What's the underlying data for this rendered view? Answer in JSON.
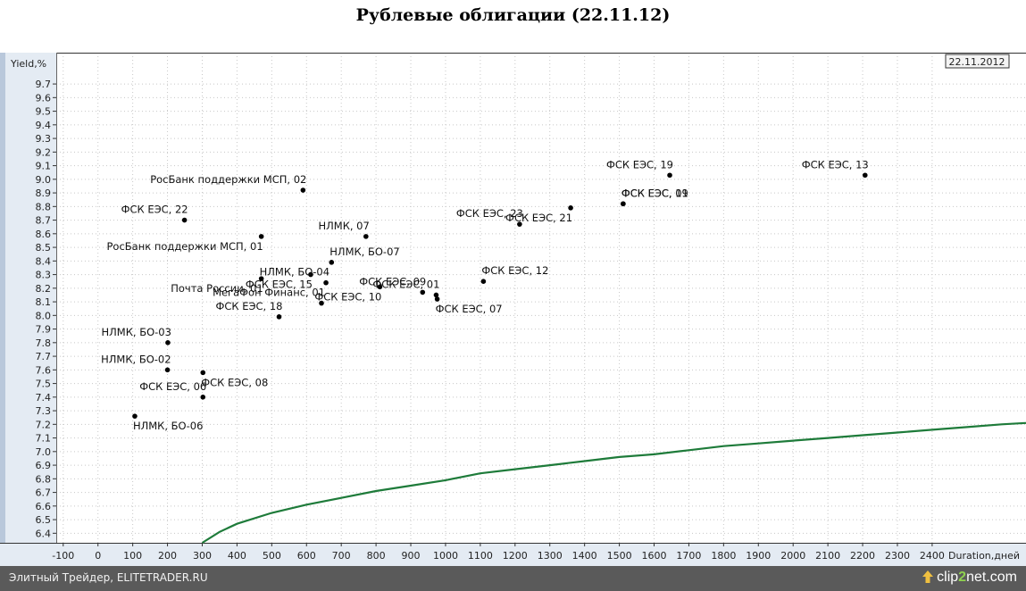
{
  "header": {
    "title": "Рублевые облигации (22.11.12)"
  },
  "chart_data": {
    "type": "scatter",
    "title": "Рублевые облигации (22.11.12)",
    "xlabel": "Duration,дней",
    "ylabel": "Yield,%",
    "date_label": "22.11.2012",
    "xlim": [
      -120,
      2670
    ],
    "ylim": [
      6.33,
      9.93
    ],
    "x_ticks": [
      -100,
      0,
      100,
      200,
      300,
      400,
      500,
      600,
      700,
      800,
      900,
      1000,
      1100,
      1200,
      1300,
      1400,
      1500,
      1600,
      1700,
      1800,
      1900,
      2000,
      2100,
      2200,
      2300,
      2400
    ],
    "y_ticks": [
      6.4,
      6.5,
      6.6,
      6.7,
      6.8,
      6.9,
      7.0,
      7.1,
      7.2,
      7.3,
      7.4,
      7.5,
      7.6,
      7.7,
      7.8,
      7.9,
      8.0,
      8.1,
      8.2,
      8.3,
      8.4,
      8.5,
      8.6,
      8.7,
      8.8,
      8.9,
      9.0,
      9.1,
      9.2,
      9.3,
      9.4,
      9.5,
      9.6,
      9.7
    ],
    "y_tick_labels": [
      "6.4",
      "6.5",
      "6.6",
      "6.7",
      "6.8",
      "6.9",
      "7.0",
      "7.1",
      "7.2",
      "7.3",
      "7.4",
      "7.5",
      "7.6",
      "7.7",
      "7.8",
      "7.9",
      "8.0",
      "8.1",
      "8.2",
      "8.3",
      "8.4",
      "8.5",
      "8.6",
      "8.7",
      "8.8",
      "8.9",
      "9.0",
      "9.1",
      "9.2",
      "9.3",
      "9.4",
      "9.5",
      "9.6",
      "9.7"
    ],
    "grid": true,
    "curve_color": "#1e7b3a",
    "point_color": "#000000",
    "points": [
      {
        "label": "НЛМК, БО-06",
        "x": 106,
        "y": 7.26,
        "pos": "below-right"
      },
      {
        "label": "НЛМК, БО-02",
        "x": 200,
        "y": 7.6,
        "pos": "above-left"
      },
      {
        "label": "НЛМК, БО-03",
        "x": 201,
        "y": 7.8,
        "pos": "above-left"
      },
      {
        "label": "ФСК ЕЭС, 06",
        "x": 302,
        "y": 7.4,
        "pos": "above-left"
      },
      {
        "label": "ФСК ЕЭС, 08",
        "x": 302,
        "y": 7.58,
        "pos": "below-right"
      },
      {
        "label": "ФСК ЕЭС, 22",
        "x": 249,
        "y": 8.7,
        "pos": "above-left"
      },
      {
        "label": "РосБанк поддержки МСП, 01",
        "x": 470,
        "y": 8.58,
        "pos": "below-left"
      },
      {
        "label": "Почта России, 01",
        "x": 470,
        "y": 8.27,
        "pos": "below-left"
      },
      {
        "label": "ФСК ЕЭС, 15",
        "x": 612,
        "y": 8.3,
        "pos": "below-left"
      },
      {
        "label": "ФСК ЕЭС, 18",
        "x": 521,
        "y": 7.99,
        "pos": "above-left"
      },
      {
        "label": "РосБанк поддержки МСП, 02",
        "x": 590,
        "y": 8.92,
        "pos": "above-left"
      },
      {
        "label": "НЛМК, БО-04",
        "x": 656,
        "y": 8.24,
        "pos": "above-left"
      },
      {
        "label": "МегаФон Финанс, 01",
        "x": 643,
        "y": 8.09,
        "pos": "above-left"
      },
      {
        "label": "НЛМК, БО-07",
        "x": 672,
        "y": 8.39,
        "pos": "above-right"
      },
      {
        "label": "НЛМК, 07",
        "x": 771,
        "y": 8.58,
        "pos": "above-left"
      },
      {
        "label": "ФСК ЕЭС, 10",
        "x": 811,
        "y": 8.21,
        "pos": "below-left"
      },
      {
        "label": "ФСК ЕЭС, 09",
        "x": 934,
        "y": 8.17,
        "pos": "above-left"
      },
      {
        "label": "ФСК ЕЭС, 01",
        "x": 973,
        "y": 8.15,
        "pos": "above-left"
      },
      {
        "label": "ФСК ЕЭС, 07",
        "x": 976,
        "y": 8.12,
        "pos": "below-right"
      },
      {
        "label": "ФСК ЕЭС, 12",
        "x": 1109,
        "y": 8.25,
        "pos": "above-right"
      },
      {
        "label": "ФСК ЕЭС, 23",
        "x": 1213,
        "y": 8.67,
        "pos": "above-left"
      },
      {
        "label": "ФСК ЕЭС, 21",
        "x": 1360,
        "y": 8.79,
        "pos": "below-left"
      },
      {
        "label": "ФСК ЕЭС, 11",
        "x": 1511,
        "y": 8.82,
        "pos": "above-right"
      },
      {
        "label": "ФСК ЕЭС, 09",
        "x": 1511,
        "y": 8.82,
        "pos": "above-right"
      },
      {
        "label": "ФСК ЕЭС, 19",
        "x": 1645,
        "y": 9.03,
        "pos": "above-left"
      },
      {
        "label": "ФСК ЕЭС, 13",
        "x": 2207,
        "y": 9.03,
        "pos": "above-left"
      }
    ],
    "curve": [
      {
        "x": 300,
        "y": 6.33
      },
      {
        "x": 350,
        "y": 6.41
      },
      {
        "x": 400,
        "y": 6.47
      },
      {
        "x": 500,
        "y": 6.55
      },
      {
        "x": 600,
        "y": 6.61
      },
      {
        "x": 700,
        "y": 6.66
      },
      {
        "x": 800,
        "y": 6.71
      },
      {
        "x": 900,
        "y": 6.75
      },
      {
        "x": 1000,
        "y": 6.79
      },
      {
        "x": 1100,
        "y": 6.84
      },
      {
        "x": 1200,
        "y": 6.87
      },
      {
        "x": 1300,
        "y": 6.9
      },
      {
        "x": 1400,
        "y": 6.93
      },
      {
        "x": 1500,
        "y": 6.96
      },
      {
        "x": 1600,
        "y": 6.98
      },
      {
        "x": 1700,
        "y": 7.01
      },
      {
        "x": 1800,
        "y": 7.04
      },
      {
        "x": 1900,
        "y": 7.06
      },
      {
        "x": 2000,
        "y": 7.08
      },
      {
        "x": 2100,
        "y": 7.1
      },
      {
        "x": 2200,
        "y": 7.12
      },
      {
        "x": 2300,
        "y": 7.14
      },
      {
        "x": 2400,
        "y": 7.16
      },
      {
        "x": 2500,
        "y": 7.18
      },
      {
        "x": 2600,
        "y": 7.2
      },
      {
        "x": 2670,
        "y": 7.21
      }
    ]
  },
  "footer": {
    "left_text": "Элитный Трейдер, ELITETRADER.RU",
    "logo_prefix": "clip",
    "logo_two": "2",
    "logo_suffix": "net.com"
  }
}
